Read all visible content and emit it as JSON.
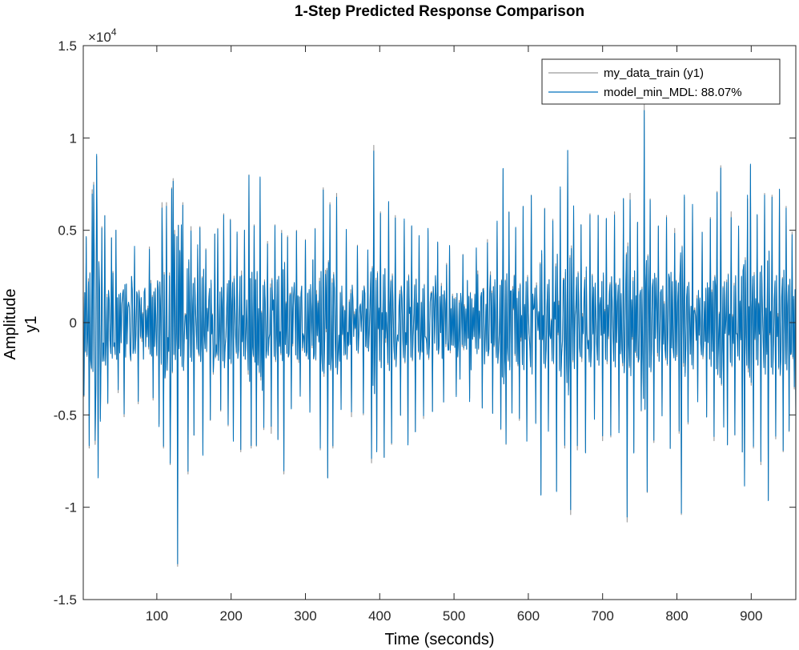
{
  "chart_data": {
    "type": "line",
    "title": "1-Step Predicted Response Comparison",
    "xlabel": "Time (seconds)",
    "ylabel": "Amplitude",
    "channel_label": "y1",
    "y_exponent_label": "×10",
    "y_exponent_power": "4",
    "xlim": [
      1,
      960
    ],
    "ylim": [
      -15000,
      15000
    ],
    "x_ticks": [
      100,
      200,
      300,
      400,
      500,
      600,
      700,
      800,
      900
    ],
    "x_tick_labels": [
      "100",
      "200",
      "300",
      "400",
      "500",
      "600",
      "700",
      "800",
      "900"
    ],
    "y_ticks": [
      -15000,
      -10000,
      -5000,
      0,
      5000,
      10000,
      15000
    ],
    "y_tick_labels": [
      "-1.5",
      "-1",
      "-0.5",
      "0",
      "0.5",
      "1",
      "1.5"
    ],
    "grid": false,
    "legend_position": "top-right",
    "sample_time": 1,
    "n_samples": 960,
    "signal_rms": 3100,
    "fit_percent": 88.07,
    "series": [
      {
        "name": "my_data_train (y1)",
        "color": "#9a9a9a"
      },
      {
        "name": "model_min_MDL: 88.07%",
        "color": "#0072bd"
      }
    ],
    "peaks": [
      {
        "x": 2,
        "y": -4000
      },
      {
        "x": 5,
        "y": 4600
      },
      {
        "x": 9,
        "y": -6800
      },
      {
        "x": 13,
        "y": 7200
      },
      {
        "x": 15,
        "y": 7600
      },
      {
        "x": 17,
        "y": -6600
      },
      {
        "x": 19,
        "y": 9000
      },
      {
        "x": 21,
        "y": -8300
      },
      {
        "x": 24,
        "y": -5200
      },
      {
        "x": 26,
        "y": 5200
      },
      {
        "x": 30,
        "y": 5800
      },
      {
        "x": 34,
        "y": -4400
      },
      {
        "x": 39,
        "y": 4600
      },
      {
        "x": 45,
        "y": 5000
      },
      {
        "x": 48,
        "y": -3800
      },
      {
        "x": 56,
        "y": -5100
      },
      {
        "x": 70,
        "y": 4000
      },
      {
        "x": 75,
        "y": -4400
      },
      {
        "x": 90,
        "y": 4100
      },
      {
        "x": 95,
        "y": -4200
      },
      {
        "x": 103,
        "y": -5500
      },
      {
        "x": 107,
        "y": 6500
      },
      {
        "x": 109,
        "y": -6800
      },
      {
        "x": 113,
        "y": 6500
      },
      {
        "x": 118,
        "y": -7700
      },
      {
        "x": 120,
        "y": 7300
      },
      {
        "x": 122,
        "y": 7800
      },
      {
        "x": 124,
        "y": 5000
      },
      {
        "x": 128,
        "y": -13200
      },
      {
        "x": 131,
        "y": 3800
      },
      {
        "x": 133,
        "y": 5100
      },
      {
        "x": 135,
        "y": 6500
      },
      {
        "x": 142,
        "y": -8200
      },
      {
        "x": 146,
        "y": 5200
      },
      {
        "x": 150,
        "y": -6100
      },
      {
        "x": 155,
        "y": 4000
      },
      {
        "x": 158,
        "y": 5200
      },
      {
        "x": 162,
        "y": -7100
      },
      {
        "x": 166,
        "y": 4000
      },
      {
        "x": 172,
        "y": -5300
      },
      {
        "x": 178,
        "y": 4800
      },
      {
        "x": 182,
        "y": 5100
      },
      {
        "x": 186,
        "y": -4800
      },
      {
        "x": 190,
        "y": 5900
      },
      {
        "x": 196,
        "y": -5600
      },
      {
        "x": 199,
        "y": 5600
      },
      {
        "x": 203,
        "y": -6300
      },
      {
        "x": 208,
        "y": 4800
      },
      {
        "x": 213,
        "y": -7000
      },
      {
        "x": 218,
        "y": 5000
      },
      {
        "x": 224,
        "y": 8000
      },
      {
        "x": 227,
        "y": -6800
      },
      {
        "x": 231,
        "y": 5300
      },
      {
        "x": 234,
        "y": -6700
      },
      {
        "x": 239,
        "y": 7800
      },
      {
        "x": 244,
        "y": -5800
      },
      {
        "x": 249,
        "y": 4400
      },
      {
        "x": 254,
        "y": -6000
      },
      {
        "x": 259,
        "y": 5300
      },
      {
        "x": 263,
        "y": -6300
      },
      {
        "x": 268,
        "y": 5000
      },
      {
        "x": 271,
        "y": -8200
      },
      {
        "x": 276,
        "y": 4700
      },
      {
        "x": 281,
        "y": -4600
      },
      {
        "x": 288,
        "y": 5000
      },
      {
        "x": 293,
        "y": -4000
      },
      {
        "x": 300,
        "y": 4500
      },
      {
        "x": 306,
        "y": -4800
      },
      {
        "x": 313,
        "y": 5100
      },
      {
        "x": 320,
        "y": -6900
      },
      {
        "x": 324,
        "y": 7300
      },
      {
        "x": 330,
        "y": -8400
      },
      {
        "x": 333,
        "y": 6500
      },
      {
        "x": 337,
        "y": -6800
      },
      {
        "x": 342,
        "y": 7000
      },
      {
        "x": 348,
        "y": -4700
      },
      {
        "x": 355,
        "y": 5000
      },
      {
        "x": 362,
        "y": -5100
      },
      {
        "x": 370,
        "y": 4200
      },
      {
        "x": 378,
        "y": -5000
      },
      {
        "x": 384,
        "y": 3900
      },
      {
        "x": 389,
        "y": -7600
      },
      {
        "x": 392,
        "y": 9600
      },
      {
        "x": 396,
        "y": -6900
      },
      {
        "x": 401,
        "y": 6000
      },
      {
        "x": 406,
        "y": -7300
      },
      {
        "x": 412,
        "y": 6500
      },
      {
        "x": 416,
        "y": -6600
      },
      {
        "x": 421,
        "y": 5800
      },
      {
        "x": 428,
        "y": -5000
      },
      {
        "x": 433,
        "y": 5500
      },
      {
        "x": 438,
        "y": -6500
      },
      {
        "x": 443,
        "y": 5200
      },
      {
        "x": 448,
        "y": -5900
      },
      {
        "x": 453,
        "y": 4600
      },
      {
        "x": 459,
        "y": -5200
      },
      {
        "x": 465,
        "y": 5000
      },
      {
        "x": 471,
        "y": -4800
      },
      {
        "x": 478,
        "y": 4300
      },
      {
        "x": 486,
        "y": -4300
      },
      {
        "x": 494,
        "y": 4100
      },
      {
        "x": 503,
        "y": -3900
      },
      {
        "x": 512,
        "y": 3700
      },
      {
        "x": 521,
        "y": -4100
      },
      {
        "x": 530,
        "y": 4000
      },
      {
        "x": 538,
        "y": -4600
      },
      {
        "x": 545,
        "y": 4500
      },
      {
        "x": 552,
        "y": -4900
      },
      {
        "x": 558,
        "y": 5400
      },
      {
        "x": 563,
        "y": -5800
      },
      {
        "x": 566,
        "y": 8300
      },
      {
        "x": 570,
        "y": -6600
      },
      {
        "x": 574,
        "y": 6000
      },
      {
        "x": 578,
        "y": -4900
      },
      {
        "x": 583,
        "y": 5100
      },
      {
        "x": 588,
        "y": -5300
      },
      {
        "x": 593,
        "y": 6300
      },
      {
        "x": 598,
        "y": -6400
      },
      {
        "x": 604,
        "y": 6900
      },
      {
        "x": 610,
        "y": -5400
      },
      {
        "x": 617,
        "y": -9300
      },
      {
        "x": 622,
        "y": 6200
      },
      {
        "x": 627,
        "y": -5800
      },
      {
        "x": 633,
        "y": 5600
      },
      {
        "x": 638,
        "y": -9100
      },
      {
        "x": 643,
        "y": 7200
      },
      {
        "x": 649,
        "y": -6800
      },
      {
        "x": 653,
        "y": 9300
      },
      {
        "x": 657,
        "y": -10400
      },
      {
        "x": 661,
        "y": 6100
      },
      {
        "x": 666,
        "y": -6900
      },
      {
        "x": 671,
        "y": 5300
      },
      {
        "x": 677,
        "y": -7000
      },
      {
        "x": 683,
        "y": 5900
      },
      {
        "x": 689,
        "y": -5200
      },
      {
        "x": 694,
        "y": 5800
      },
      {
        "x": 700,
        "y": -6400
      },
      {
        "x": 705,
        "y": 5600
      },
      {
        "x": 711,
        "y": -6200
      },
      {
        "x": 716,
        "y": 6000
      },
      {
        "x": 722,
        "y": -5800
      },
      {
        "x": 728,
        "y": 6700
      },
      {
        "x": 733,
        "y": -10800
      },
      {
        "x": 737,
        "y": 7000
      },
      {
        "x": 742,
        "y": -7000
      },
      {
        "x": 747,
        "y": 5400
      },
      {
        "x": 752,
        "y": -4800
      },
      {
        "x": 756,
        "y": 11800
      },
      {
        "x": 760,
        "y": -9200
      },
      {
        "x": 764,
        "y": 6700
      },
      {
        "x": 769,
        "y": -6500
      },
      {
        "x": 775,
        "y": 5200
      },
      {
        "x": 780,
        "y": -5000
      },
      {
        "x": 786,
        "y": 5800
      },
      {
        "x": 791,
        "y": -6800
      },
      {
        "x": 797,
        "y": 5100
      },
      {
        "x": 803,
        "y": -6000
      },
      {
        "x": 806,
        "y": -10400
      },
      {
        "x": 810,
        "y": 6800
      },
      {
        "x": 815,
        "y": -5500
      },
      {
        "x": 821,
        "y": 6300
      },
      {
        "x": 828,
        "y": -4200
      },
      {
        "x": 834,
        "y": 4900
      },
      {
        "x": 840,
        "y": -5100
      },
      {
        "x": 845,
        "y": 5700
      },
      {
        "x": 850,
        "y": -6400
      },
      {
        "x": 854,
        "y": 7100
      },
      {
        "x": 859,
        "y": 8500
      },
      {
        "x": 863,
        "y": -5600
      },
      {
        "x": 868,
        "y": -6600
      },
      {
        "x": 873,
        "y": 6000
      },
      {
        "x": 878,
        "y": -6100
      },
      {
        "x": 883,
        "y": 5100
      },
      {
        "x": 888,
        "y": -7000
      },
      {
        "x": 891,
        "y": -8800
      },
      {
        "x": 895,
        "y": 6700
      },
      {
        "x": 899,
        "y": 8500
      },
      {
        "x": 903,
        "y": -6800
      },
      {
        "x": 908,
        "y": 5800
      },
      {
        "x": 913,
        "y": -7700
      },
      {
        "x": 918,
        "y": 7000
      },
      {
        "x": 923,
        "y": -9600
      },
      {
        "x": 928,
        "y": 6900
      },
      {
        "x": 933,
        "y": -6300
      },
      {
        "x": 938,
        "y": 7200
      },
      {
        "x": 943,
        "y": -7000
      },
      {
        "x": 947,
        "y": 6300
      },
      {
        "x": 951,
        "y": -5900
      },
      {
        "x": 955,
        "y": 4900
      },
      {
        "x": 958,
        "y": -3600
      },
      {
        "x": 960,
        "y": -5000
      }
    ]
  }
}
